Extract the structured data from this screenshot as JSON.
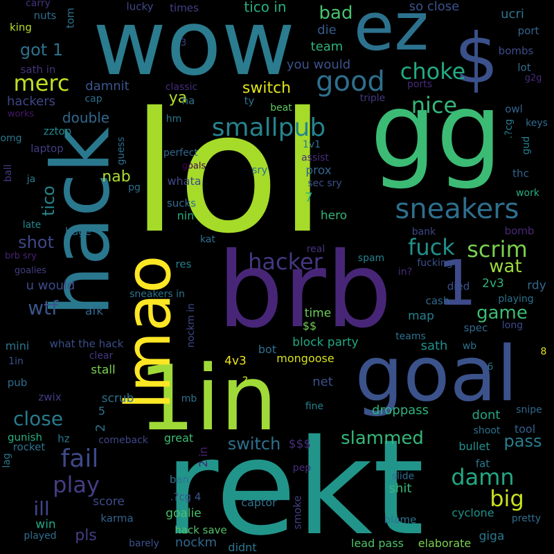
{
  "background": "#000000",
  "words": [
    {
      "text": "lol",
      "color": "#a6db2a"
    },
    {
      "text": "rekt",
      "color": "#22958b"
    },
    {
      "text": "wow",
      "color": "#2b7c8f"
    },
    {
      "text": "gg",
      "color": "#3cbb75"
    },
    {
      "text": "brb",
      "color": "#482677"
    },
    {
      "text": "goal",
      "color": "#3b528b"
    },
    {
      "text": "1in",
      "color": "#a0da39"
    },
    {
      "text": "hack",
      "color": "#2a788e"
    },
    {
      "text": "lmao",
      "color": "#fde725"
    },
    {
      "text": "ez",
      "color": "#2c728e"
    },
    {
      "text": "$",
      "color": "#3b518b"
    },
    {
      "text": "1",
      "color": "#3e4a89"
    },
    {
      "text": "sneakers",
      "color": "#2e6f8e"
    },
    {
      "text": "good",
      "color": "#2d708e"
    },
    {
      "text": "smallpub",
      "color": "#25848e"
    },
    {
      "text": "merc",
      "color": "#c2df23"
    },
    {
      "text": "choke",
      "color": "#24aa83"
    },
    {
      "text": "nice",
      "color": "#35b779"
    },
    {
      "text": "fuck",
      "color": "#21918c"
    },
    {
      "text": "hacker",
      "color": "#453781"
    },
    {
      "text": "scrim",
      "color": "#7ad151"
    },
    {
      "text": "wat",
      "color": "#9bd93c"
    },
    {
      "text": "fail",
      "color": "#3e4989"
    },
    {
      "text": "play",
      "color": "#433e85"
    },
    {
      "text": "damn",
      "color": "#22a884"
    },
    {
      "text": "big",
      "color": "#c8e020"
    },
    {
      "text": "slammed",
      "color": "#35b779"
    },
    {
      "text": "close",
      "color": "#297b8e"
    },
    {
      "text": "switch",
      "color": "#2d708e"
    },
    {
      "text": "pass",
      "color": "#287d8e"
    },
    {
      "text": "game",
      "color": "#3dbc74"
    },
    {
      "text": "wtf",
      "color": "#39568c"
    },
    {
      "text": "ill",
      "color": "#404688"
    },
    {
      "text": "shot",
      "color": "#3f4788"
    },
    {
      "text": "tico",
      "color": "#24868e"
    },
    {
      "text": "got 1",
      "color": "#2d718e"
    },
    {
      "text": "bad",
      "color": "#4ac16d"
    },
    {
      "text": "switch",
      "color": "#e2e418"
    },
    {
      "text": "nab",
      "color": "#addc30"
    },
    {
      "text": "ya",
      "color": "#b8de29"
    },
    {
      "text": "double",
      "color": "#31688e"
    },
    {
      "text": "tico in",
      "color": "#29af7f"
    },
    {
      "text": "team",
      "color": "#2fb47c"
    },
    {
      "text": "die",
      "color": "#365c8d"
    },
    {
      "text": "you would",
      "color": "#3b528b"
    },
    {
      "text": "damnit",
      "color": "#39568c"
    },
    {
      "text": "hackers",
      "color": "#3f4788"
    },
    {
      "text": "sath in",
      "color": "#46337e"
    },
    {
      "text": "king",
      "color": "#b5de2b"
    },
    {
      "text": "nuts",
      "color": "#2e6f8e"
    },
    {
      "text": "carry",
      "color": "#46327e"
    },
    {
      "text": "tom",
      "color": "#2c728e"
    },
    {
      "text": "lucky",
      "color": "#3f4889"
    },
    {
      "text": "times",
      "color": "#424086"
    },
    {
      "text": "so close",
      "color": "#3b528b"
    },
    {
      "text": "ucri",
      "color": "#2a768e"
    },
    {
      "text": "port",
      "color": "#32648e"
    },
    {
      "text": "bombs",
      "color": "#3e4c8a"
    },
    {
      "text": "lot",
      "color": "#2e6f8e"
    },
    {
      "text": "g2g",
      "color": "#472d7b"
    },
    {
      "text": "ports",
      "color": "#472c7a"
    },
    {
      "text": "triple",
      "color": "#453882"
    },
    {
      "text": "classic",
      "color": "#472c7a"
    },
    {
      "text": "cap",
      "color": "#2e6e8e"
    },
    {
      "text": "ha",
      "color": "#2c738e"
    },
    {
      "text": "ty",
      "color": "#2c728e"
    },
    {
      "text": "beat",
      "color": "#5ec962"
    },
    {
      "text": "owl",
      "color": "#33638d"
    },
    {
      "text": "keys",
      "color": "#2f6c8e"
    },
    {
      "text": "gud",
      "color": "#26818e"
    },
    {
      "text": ".?cg",
      "color": "#277f8e"
    },
    {
      "text": "works",
      "color": "#48186a"
    },
    {
      "text": "zztop",
      "color": "#23898e"
    },
    {
      "text": "omg",
      "color": "#2a788e"
    },
    {
      "text": "laptop",
      "color": "#433e85"
    },
    {
      "text": "hm",
      "color": "#2a788e"
    },
    {
      "text": "perfect",
      "color": "#31688e"
    },
    {
      "text": "guess",
      "color": "#2e6e8e"
    },
    {
      "text": "goals",
      "color": "#440154"
    },
    {
      "text": "assist",
      "color": "#472d7b"
    },
    {
      "text": "1v1",
      "color": "#2a768e"
    },
    {
      "text": "sry",
      "color": "#2c728e"
    },
    {
      "text": "prox",
      "color": "#32658e"
    },
    {
      "text": "sec sry",
      "color": "#3b528b"
    },
    {
      "text": "ball",
      "color": "#433e85"
    },
    {
      "text": "ja",
      "color": "#297a8e"
    },
    {
      "text": "pg",
      "color": "#2e6e8e"
    },
    {
      "text": "whata",
      "color": "#3e4989"
    },
    {
      "text": "thc",
      "color": "#32648e"
    },
    {
      "text": "work",
      "color": "#28ae80"
    },
    {
      "text": "late",
      "color": "#23888e"
    },
    {
      "text": "sucks",
      "color": "#306a8e"
    },
    {
      "text": "nin",
      "color": "#25ac82"
    },
    {
      "text": "7",
      "color": "#2ab07f"
    },
    {
      "text": "hero",
      "color": "#34b679"
    },
    {
      "text": "bank",
      "color": "#404688"
    },
    {
      "text": "bomb",
      "color": "#482878"
    },
    {
      "text": "huge",
      "color": "#2c728e"
    },
    {
      "text": "kat",
      "color": "#2c728e"
    },
    {
      "text": "real",
      "color": "#46327e"
    },
    {
      "text": "brb sry",
      "color": "#482374"
    },
    {
      "text": "res",
      "color": "#26828e"
    },
    {
      "text": "spam",
      "color": "#26828e"
    },
    {
      "text": "fucking",
      "color": "#3b528b"
    },
    {
      "text": "in?",
      "color": "#472d7b"
    },
    {
      "text": "goalies",
      "color": "#433e85"
    },
    {
      "text": "u would",
      "color": "#3e4a89"
    },
    {
      "text": "2v3",
      "color": "#2fb47c"
    },
    {
      "text": "rdy",
      "color": "#31688e"
    },
    {
      "text": "died",
      "color": "#3b528b"
    },
    {
      "text": "playing",
      "color": "#2c728e"
    },
    {
      "text": "sneakers in",
      "color": "#2b758e"
    },
    {
      "text": "afk",
      "color": "#31688e"
    },
    {
      "text": "nockm in",
      "color": "#3e4989"
    },
    {
      "text": "cash",
      "color": "#31688e"
    },
    {
      "text": "time",
      "color": "#6ccd5a"
    },
    {
      "text": "map",
      "color": "#27808e"
    },
    {
      "text": "$$",
      "color": "#73d056"
    },
    {
      "text": "spec",
      "color": "#31688e"
    },
    {
      "text": "long",
      "color": "#3e4a89"
    },
    {
      "text": "mini",
      "color": "#2b758e"
    },
    {
      "text": "what the hack",
      "color": "#3c508b"
    },
    {
      "text": "block party",
      "color": "#22a884"
    },
    {
      "text": "sath",
      "color": "#21908d"
    },
    {
      "text": "teams",
      "color": "#2c728e"
    },
    {
      "text": "wb",
      "color": "#2c738e"
    },
    {
      "text": "8",
      "color": "#e5e419"
    },
    {
      "text": "1in",
      "color": "#3b528b"
    },
    {
      "text": "bot",
      "color": "#2c728e"
    },
    {
      "text": "clear",
      "color": "#453882"
    },
    {
      "text": "4v3",
      "color": "#f1e51d"
    },
    {
      "text": "mongoose",
      "color": "#d8e219"
    },
    {
      "text": "stall",
      "color": "#7ad151"
    },
    {
      "text": "pub",
      "color": "#2e6e8e"
    },
    {
      "text": "net",
      "color": "#3b518b"
    },
    {
      "text": "6",
      "color": "#2d708e"
    },
    {
      "text": "zwix",
      "color": "#433e85"
    },
    {
      "text": "?",
      "color": "#c8e020"
    },
    {
      "text": "scrub",
      "color": "#2d718e"
    },
    {
      "text": "mb",
      "color": "#2d708e"
    },
    {
      "text": "fine",
      "color": "#26818e"
    },
    {
      "text": "5",
      "color": "#2c728e"
    },
    {
      "text": "droppass",
      "color": "#2fb47c"
    },
    {
      "text": "dont",
      "color": "#21a685"
    },
    {
      "text": "snipe",
      "color": "#31688e"
    },
    {
      "text": "2",
      "color": "#2c718e"
    },
    {
      "text": "tool",
      "color": "#34608d"
    },
    {
      "text": "gunish",
      "color": "#2ab07f"
    },
    {
      "text": "hz",
      "color": "#2a788e"
    },
    {
      "text": "rocket",
      "color": "#2c728e"
    },
    {
      "text": "comeback",
      "color": "#3f4788"
    },
    {
      "text": "great",
      "color": "#3dbc74"
    },
    {
      "text": "$$$",
      "color": "#472d7b"
    },
    {
      "text": "shoot",
      "color": "#2c728e"
    },
    {
      "text": "bullet",
      "color": "#21908d"
    },
    {
      "text": "2 in",
      "color": "#482071"
    },
    {
      "text": "lag",
      "color": "#2a778e"
    },
    {
      "text": "pep",
      "color": "#472d7b"
    },
    {
      "text": "fat",
      "color": "#2a788e"
    },
    {
      "text": "ban",
      "color": "#2c728e"
    },
    {
      "text": "slide",
      "color": "#2e6e8e"
    },
    {
      "text": "shit",
      "color": "#35b779"
    },
    {
      "text": "score",
      "color": "#3e4c8a"
    },
    {
      "text": ".?cg 4",
      "color": "#39568c"
    },
    {
      "text": "captor",
      "color": "#2c728e"
    },
    {
      "text": "goalie",
      "color": "#4ac16d"
    },
    {
      "text": "smoke",
      "color": "#433e85"
    },
    {
      "text": "win",
      "color": "#22a884"
    },
    {
      "text": "karma",
      "color": "#33638d"
    },
    {
      "text": "cyclone",
      "color": "#21918c"
    },
    {
      "text": "pretty",
      "color": "#2e6e8e"
    },
    {
      "text": "pls",
      "color": "#433e85"
    },
    {
      "text": "hack save",
      "color": "#52c569"
    },
    {
      "text": "blame",
      "color": "#2c728e"
    },
    {
      "text": "played",
      "color": "#2e6e8e"
    },
    {
      "text": "barely",
      "color": "#3b528b"
    },
    {
      "text": "nockm",
      "color": "#31688e"
    },
    {
      "text": "didnt",
      "color": "#2a788e"
    },
    {
      "text": "lead pass",
      "color": "#4ec36b"
    },
    {
      "text": "elaborate",
      "color": "#7ad151"
    },
    {
      "text": "giga",
      "color": "#2a788e"
    },
    {
      "text": "3",
      "color": "#433e85"
    }
  ]
}
